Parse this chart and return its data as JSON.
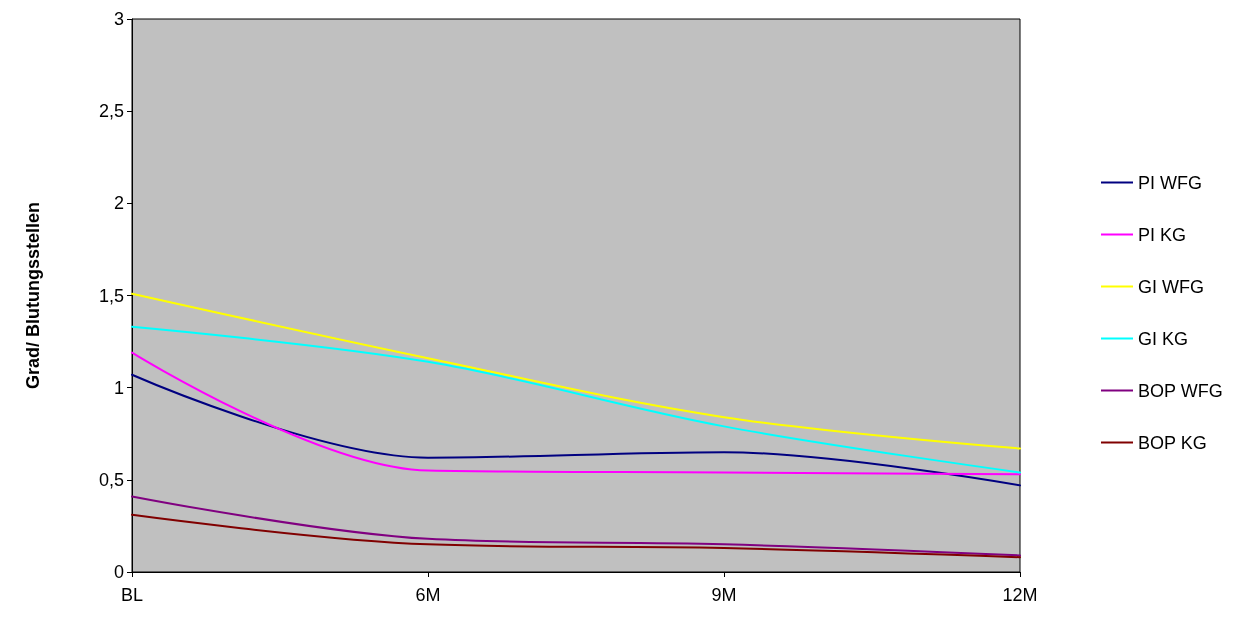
{
  "chart_data": {
    "type": "line",
    "ylabel": "Grad/ Blutungsstellen",
    "categories": [
      "BL",
      "6M",
      "9M",
      "12M"
    ],
    "series": [
      {
        "name": "PI WFG",
        "color": "#000080",
        "values": [
          1.07,
          0.62,
          0.65,
          0.47
        ]
      },
      {
        "name": "PI KG",
        "color": "#ff00ff",
        "values": [
          1.19,
          0.55,
          0.54,
          0.53
        ]
      },
      {
        "name": "GI WFG",
        "color": "#ffff00",
        "values": [
          1.51,
          1.16,
          0.84,
          0.67
        ]
      },
      {
        "name": "GI KG",
        "color": "#00ffff",
        "values": [
          1.33,
          1.14,
          0.79,
          0.54
        ]
      },
      {
        "name": "BOP WFG",
        "color": "#800080",
        "values": [
          0.41,
          0.18,
          0.15,
          0.09
        ]
      },
      {
        "name": "BOP KG",
        "color": "#800000",
        "values": [
          0.31,
          0.15,
          0.13,
          0.08
        ]
      }
    ],
    "ylim": [
      0,
      3
    ],
    "yticks": [
      0,
      {
        "value": 0.5,
        "label": "0,5"
      },
      1,
      {
        "value": 1.5,
        "label": "1,5"
      },
      2,
      {
        "value": 2.5,
        "label": "2,5"
      },
      3
    ],
    "grid": false,
    "legend": "right",
    "marker": "none",
    "line_style": "solid"
  }
}
